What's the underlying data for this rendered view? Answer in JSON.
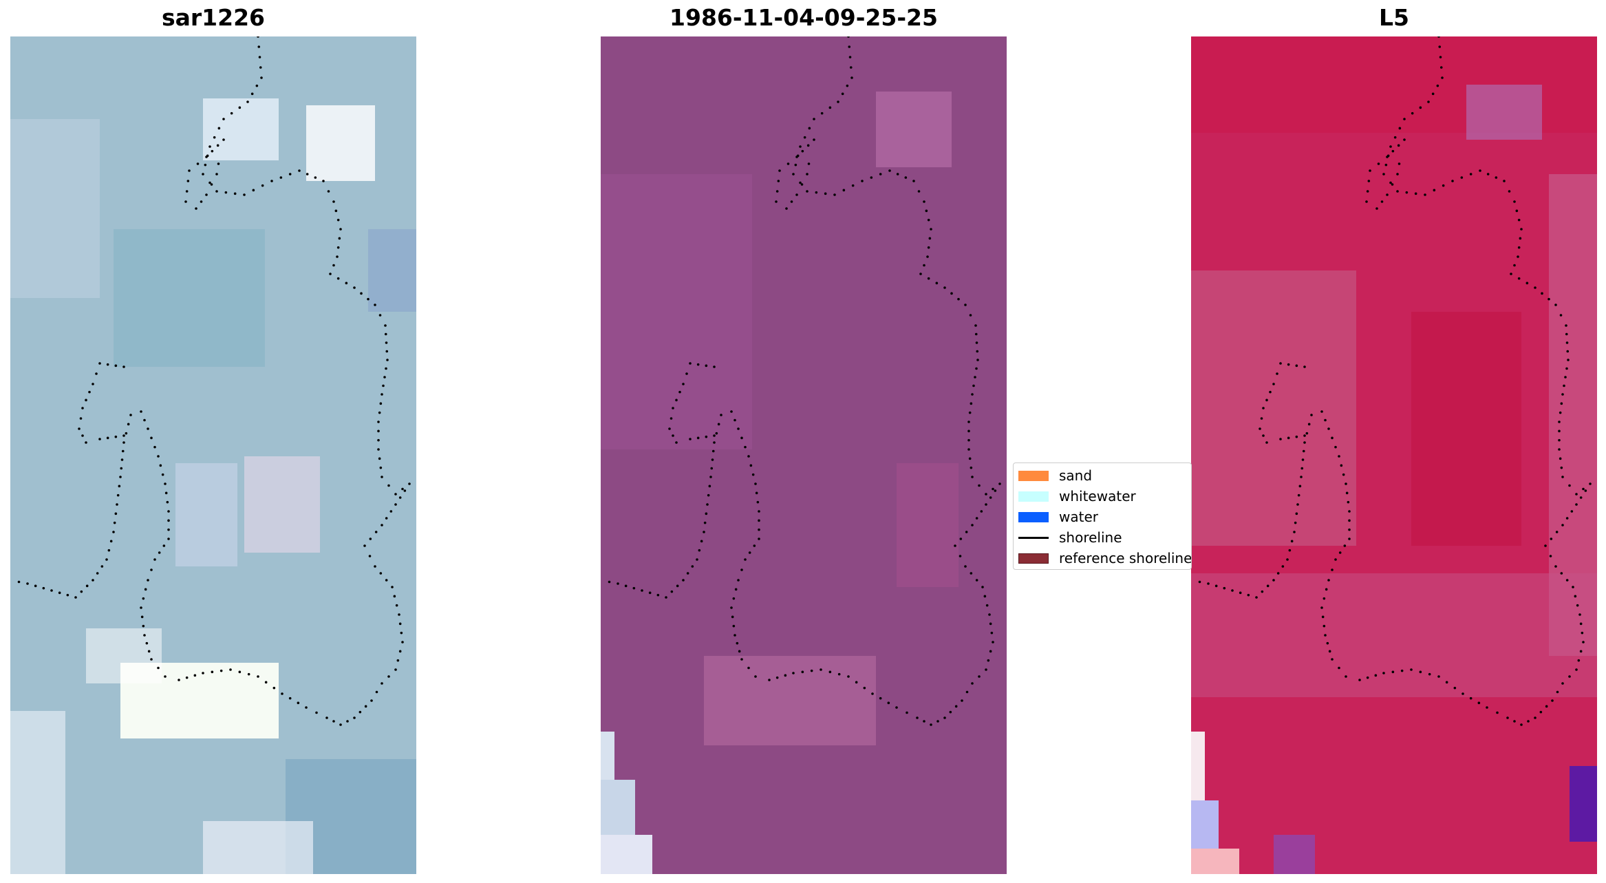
{
  "panels": [
    {
      "title": "sar1226"
    },
    {
      "title": "1986-11-04-09-25-25"
    },
    {
      "title": "L5"
    }
  ],
  "legend": {
    "items": [
      {
        "label": "sand",
        "color": "#ff8a3d",
        "kind": "patch"
      },
      {
        "label": "whitewater",
        "color": "#c7ffff",
        "kind": "patch"
      },
      {
        "label": "water",
        "color": "#0a5fff",
        "kind": "patch"
      },
      {
        "label": "shoreline",
        "color": "#000000",
        "kind": "line"
      },
      {
        "label": "reference shoreline",
        "color": "#8b2d35",
        "kind": "patch"
      }
    ]
  },
  "colors": {
    "sar_base": "#a9c3d3",
    "ndvi_base": "#8d4a84",
    "l5_base": "#c8235a",
    "shoreline": "#000000"
  }
}
